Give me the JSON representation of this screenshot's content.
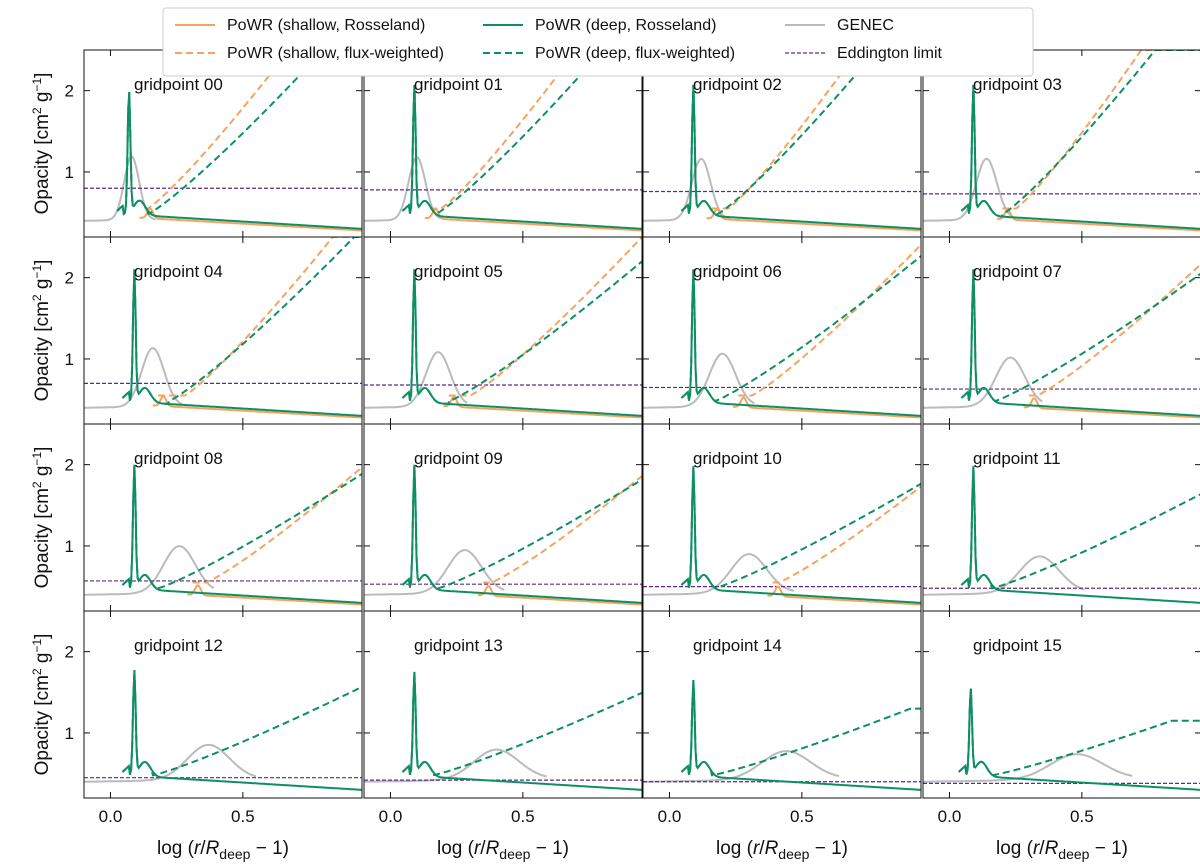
{
  "chart_data": {
    "type": "line",
    "layout": {
      "rows": 4,
      "cols": 4
    },
    "xlabel": "log (r/R_deep − 1)",
    "ylabel": "Opacity [cm² g⁻¹]",
    "xlim": [
      -0.1,
      0.95
    ],
    "ylim": [
      0.2,
      2.5
    ],
    "xticks": [
      0.0,
      0.5
    ],
    "yticks": [
      1,
      2
    ],
    "grid": false,
    "legend_position": "top, above plots",
    "legend": [
      {
        "key": "shallow_ross",
        "label": "PoWR (shallow, Rosseland)",
        "color": "#f4a460",
        "dash": "solid"
      },
      {
        "key": "shallow_flux",
        "label": "PoWR (shallow, flux-weighted)",
        "color": "#f4a460",
        "dash": "dashed"
      },
      {
        "key": "deep_ross",
        "label": "PoWR (deep, Rosseland)",
        "color": "#0e8f62",
        "dash": "solid"
      },
      {
        "key": "deep_flux",
        "label": "PoWR (deep, flux-weighted)",
        "color": "#0e8f62",
        "dash": "dashed"
      },
      {
        "key": "genec",
        "label": "GENEC",
        "color": "#bbbbbb",
        "dash": "solid"
      },
      {
        "key": "edd",
        "label": "Eddington limit",
        "color": "#5b2a8c",
        "dash": "short-dashed"
      }
    ],
    "panels": [
      {
        "label": "gridpoint 00",
        "peak_x": 0.07,
        "peak_y": 1.97,
        "genec_peak_x": 0.08,
        "genec_peak_y": 1.23,
        "genec_end_x": 0.12,
        "edd": 0.8,
        "flux_start_x": 0.14,
        "flux_slope": 3.4,
        "flux_shift": 0.0,
        "flux_top": 2.5,
        "shallow_top": 2.5,
        "min_bump_x": 0.15,
        "show_shallow": true
      },
      {
        "label": "gridpoint 01",
        "peak_x": 0.09,
        "peak_y": 2.02,
        "genec_peak_x": 0.1,
        "genec_peak_y": 1.22,
        "genec_end_x": 0.14,
        "edd": 0.78,
        "flux_start_x": 0.17,
        "flux_slope": 3.6,
        "flux_shift": 0.02,
        "flux_top": 2.5,
        "shallow_top": 2.5,
        "min_bump_x": 0.17,
        "show_shallow": true
      },
      {
        "label": "gridpoint 02",
        "peak_x": 0.09,
        "peak_y": 2.02,
        "genec_peak_x": 0.12,
        "genec_peak_y": 1.2,
        "genec_end_x": 0.18,
        "edd": 0.76,
        "flux_start_x": 0.18,
        "flux_slope": 3.8,
        "flux_shift": 0.04,
        "flux_top": 2.5,
        "shallow_top": 2.5,
        "min_bump_x": 0.18,
        "show_shallow": true
      },
      {
        "label": "gridpoint 03",
        "peak_x": 0.09,
        "peak_y": 2.02,
        "genec_peak_x": 0.14,
        "genec_peak_y": 1.2,
        "genec_end_x": 0.2,
        "edd": 0.73,
        "flux_start_x": 0.2,
        "flux_slope": 4.0,
        "flux_shift": 0.05,
        "flux_top": 2.5,
        "shallow_top": 2.5,
        "min_bump_x": 0.22,
        "show_shallow": true
      },
      {
        "label": "gridpoint 04",
        "peak_x": 0.09,
        "peak_y": 2.05,
        "genec_peak_x": 0.16,
        "genec_peak_y": 1.17,
        "genec_end_x": 0.22,
        "edd": 0.7,
        "flux_start_x": 0.22,
        "flux_slope": 3.2,
        "flux_shift": 0.06,
        "flux_top": 2.5,
        "shallow_top": 2.5,
        "min_bump_x": 0.2,
        "show_shallow": true
      },
      {
        "label": "gridpoint 05",
        "peak_x": 0.09,
        "peak_y": 2.05,
        "genec_peak_x": 0.18,
        "genec_peak_y": 1.12,
        "genec_end_x": 0.24,
        "edd": 0.68,
        "flux_start_x": 0.22,
        "flux_slope": 2.6,
        "flux_shift": 0.08,
        "flux_top": 2.4,
        "shallow_top": 2.5,
        "min_bump_x": 0.24,
        "show_shallow": true
      },
      {
        "label": "gridpoint 06",
        "peak_x": 0.09,
        "peak_y": 2.05,
        "genec_peak_x": 0.2,
        "genec_peak_y": 1.1,
        "genec_end_x": 0.27,
        "edd": 0.65,
        "flux_start_x": 0.17,
        "flux_slope": 2.5,
        "flux_shift": 0.14,
        "flux_top": 2.45,
        "shallow_top": 2.5,
        "min_bump_x": 0.28,
        "show_shallow": true
      },
      {
        "label": "gridpoint 07",
        "peak_x": 0.09,
        "peak_y": 2.05,
        "genec_peak_x": 0.23,
        "genec_peak_y": 1.05,
        "genec_end_x": 0.3,
        "edd": 0.63,
        "flux_start_x": 0.17,
        "flux_slope": 2.2,
        "flux_shift": 0.16,
        "flux_top": 2.4,
        "shallow_top": 2.5,
        "min_bump_x": 0.32,
        "show_shallow": true
      },
      {
        "label": "gridpoint 08",
        "peak_x": 0.09,
        "peak_y": 1.95,
        "genec_peak_x": 0.26,
        "genec_peak_y": 1.03,
        "genec_end_x": 0.34,
        "edd": 0.57,
        "flux_start_x": 0.18,
        "flux_slope": 2.0,
        "flux_shift": 0.18,
        "flux_top": 2.15,
        "shallow_top": 2.45,
        "min_bump_x": 0.33,
        "show_shallow": true
      },
      {
        "label": "gridpoint 09",
        "peak_x": 0.09,
        "peak_y": 1.95,
        "genec_peak_x": 0.28,
        "genec_peak_y": 0.98,
        "genec_end_x": 0.38,
        "edd": 0.53,
        "flux_start_x": 0.18,
        "flux_slope": 1.9,
        "flux_shift": 0.2,
        "flux_top": 2.0,
        "shallow_top": 2.35,
        "min_bump_x": 0.37,
        "show_shallow": true
      },
      {
        "label": "gridpoint 10",
        "peak_x": 0.09,
        "peak_y": 1.93,
        "genec_peak_x": 0.3,
        "genec_peak_y": 0.93,
        "genec_end_x": 0.42,
        "edd": 0.5,
        "flux_start_x": 0.17,
        "flux_slope": 1.8,
        "flux_shift": 0.24,
        "flux_top": 1.85,
        "shallow_top": 2.1,
        "min_bump_x": 0.41,
        "show_shallow": true
      },
      {
        "label": "gridpoint 11",
        "peak_x": 0.09,
        "peak_y": 1.93,
        "genec_peak_x": 0.34,
        "genec_peak_y": 0.9,
        "genec_end_x": 0.46,
        "edd": 0.48,
        "flux_start_x": 0.16,
        "flux_slope": 1.6,
        "flux_shift": 0.0,
        "flux_top": 1.75,
        "shallow_top": 0.0,
        "min_bump_x": 0.0,
        "show_shallow": false
      },
      {
        "label": "gridpoint 12",
        "peak_x": 0.09,
        "peak_y": 1.72,
        "genec_peak_x": 0.37,
        "genec_peak_y": 0.88,
        "genec_end_x": 0.5,
        "edd": 0.45,
        "flux_start_x": 0.16,
        "flux_slope": 1.5,
        "flux_shift": 0.0,
        "flux_top": 1.72,
        "shallow_top": 0.0,
        "min_bump_x": 0.0,
        "show_shallow": false
      },
      {
        "label": "gridpoint 13",
        "peak_x": 0.09,
        "peak_y": 1.7,
        "genec_peak_x": 0.4,
        "genec_peak_y": 0.82,
        "genec_end_x": 0.54,
        "edd": 0.42,
        "flux_start_x": 0.16,
        "flux_slope": 1.4,
        "flux_shift": 0.0,
        "flux_top": 1.5,
        "shallow_top": 0.0,
        "min_bump_x": 0.0,
        "show_shallow": false
      },
      {
        "label": "gridpoint 14",
        "peak_x": 0.09,
        "peak_y": 1.6,
        "genec_peak_x": 0.44,
        "genec_peak_y": 0.8,
        "genec_end_x": 0.59,
        "edd": 0.4,
        "flux_start_x": 0.16,
        "flux_slope": 1.2,
        "flux_shift": 0.0,
        "flux_top": 1.3,
        "shallow_top": 0.0,
        "min_bump_x": 0.0,
        "show_shallow": false
      },
      {
        "label": "gridpoint 15",
        "peak_x": 0.08,
        "peak_y": 1.5,
        "genec_peak_x": 0.48,
        "genec_peak_y": 0.76,
        "genec_end_x": 0.64,
        "edd": 0.38,
        "flux_start_x": 0.16,
        "flux_slope": 1.1,
        "flux_shift": 0.0,
        "flux_top": 1.15,
        "shallow_top": 0.0,
        "min_bump_x": 0.0,
        "show_shallow": false
      }
    ]
  }
}
